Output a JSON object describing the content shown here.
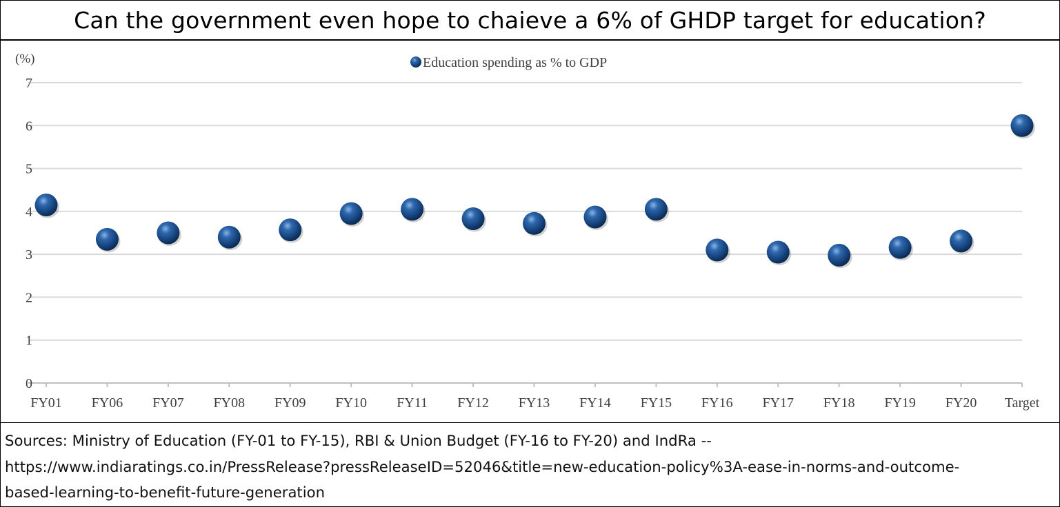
{
  "title": "Can the government even hope to chaieve a 6% of GHDP target for education?",
  "sources": "Sources: Ministry of Education (FY-01 to FY-15), RBI & Union Budget (FY-16 to FY-20) and IndRa --\nhttps://www.indiaratings.co.in/PressRelease?pressReleaseID=52046&title=new-education-policy%3A-ease-in-norms-and-outcome-\nbased-learning-to-benefit-future-generation",
  "chart_data": {
    "type": "scatter",
    "unit_label": "(%)",
    "categories": [
      "FY01",
      "FY06",
      "FY07",
      "FY08",
      "FY09",
      "FY10",
      "FY11",
      "FY12",
      "FY13",
      "FY14",
      "FY15",
      "FY16",
      "FY17",
      "FY18",
      "FY19",
      "FY20",
      "Target"
    ],
    "series": [
      {
        "name": "Education spending as % to GDP",
        "values": [
          4.15,
          3.35,
          3.5,
          3.4,
          3.57,
          3.95,
          4.05,
          3.83,
          3.72,
          3.87,
          4.05,
          3.1,
          3.05,
          2.98,
          3.16,
          3.31,
          6.0
        ],
        "color": "#1f4e8a"
      }
    ],
    "ylim": [
      0,
      7
    ],
    "yticks": [
      "0",
      "1",
      "2",
      "3",
      "4",
      "5",
      "6",
      "7"
    ],
    "grid": true,
    "legend_position": "top-center",
    "title": "",
    "xlabel": "",
    "ylabel": ""
  }
}
